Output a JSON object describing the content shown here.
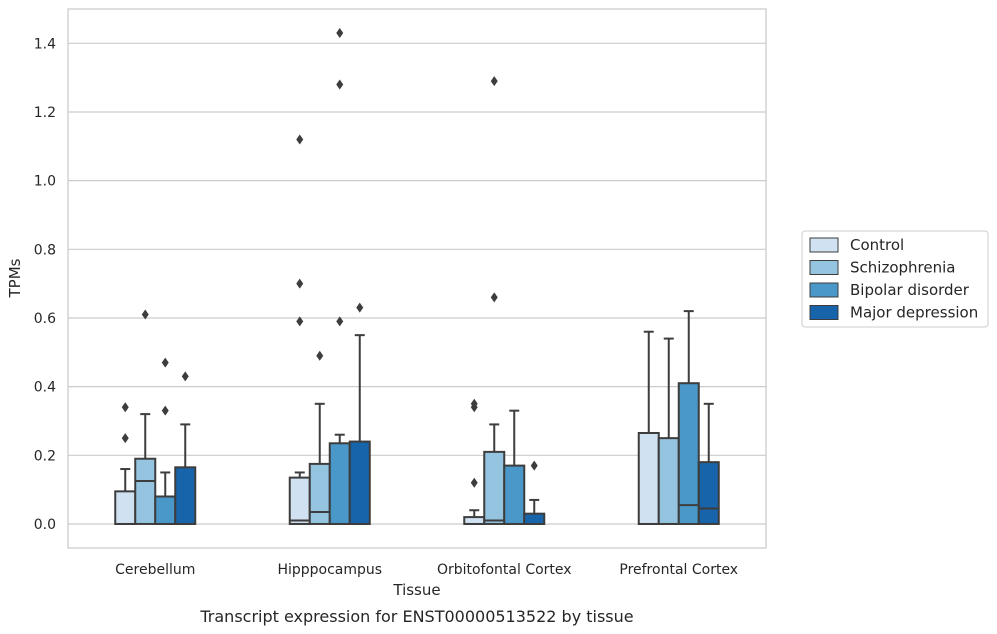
{
  "caption": "Transcript expression for ENST00000513522 by tissue",
  "chart_data": {
    "type": "boxplot",
    "xlabel": "Tissue",
    "ylabel": "TPMs",
    "ylim": [
      -0.07,
      1.5
    ],
    "yticks": [
      "0.0",
      "0.2",
      "0.4",
      "0.6",
      "0.8",
      "1.0",
      "1.2",
      "1.4"
    ],
    "grid": "horizontal",
    "legend_position": "right",
    "categories": [
      "Cerebellum",
      "Hipppocampus",
      "Orbitofontal Cortex",
      "Prefrontal Cortex"
    ],
    "series": [
      {
        "name": "Control",
        "color": "#d0e1f2",
        "boxes": [
          {
            "q1": 0.0,
            "median": 0.0,
            "q3": 0.095,
            "whisker_low": 0.0,
            "whisker_high": 0.16,
            "outliers": [
              0.25,
              0.34
            ]
          },
          {
            "q1": 0.0,
            "median": 0.01,
            "q3": 0.135,
            "whisker_low": 0.0,
            "whisker_high": 0.15,
            "outliers": [
              0.59,
              0.7,
              1.12
            ]
          },
          {
            "q1": 0.0,
            "median": 0.0,
            "q3": 0.02,
            "whisker_low": 0.0,
            "whisker_high": 0.04,
            "outliers": [
              0.12,
              0.34,
              0.35
            ]
          },
          {
            "q1": 0.0,
            "median": 0.0,
            "q3": 0.265,
            "whisker_low": 0.0,
            "whisker_high": 0.56,
            "outliers": []
          }
        ]
      },
      {
        "name": "Schizophrenia",
        "color": "#94c4df",
        "boxes": [
          {
            "q1": 0.0,
            "median": 0.125,
            "q3": 0.19,
            "whisker_low": 0.0,
            "whisker_high": 0.32,
            "outliers": [
              0.61
            ]
          },
          {
            "q1": 0.0,
            "median": 0.035,
            "q3": 0.175,
            "whisker_low": 0.0,
            "whisker_high": 0.35,
            "outliers": [
              0.49
            ]
          },
          {
            "q1": 0.0,
            "median": 0.01,
            "q3": 0.21,
            "whisker_low": 0.0,
            "whisker_high": 0.29,
            "outliers": [
              0.66,
              1.29
            ]
          },
          {
            "q1": 0.0,
            "median": 0.0,
            "q3": 0.25,
            "whisker_low": 0.0,
            "whisker_high": 0.54,
            "outliers": []
          }
        ]
      },
      {
        "name": "Bipolar disorder",
        "color": "#4a98c9",
        "boxes": [
          {
            "q1": 0.0,
            "median": 0.0,
            "q3": 0.08,
            "whisker_low": 0.0,
            "whisker_high": 0.15,
            "outliers": [
              0.33,
              0.47
            ]
          },
          {
            "q1": 0.0,
            "median": 0.0,
            "q3": 0.235,
            "whisker_low": 0.0,
            "whisker_high": 0.26,
            "outliers": [
              0.59,
              1.28,
              1.43
            ]
          },
          {
            "q1": 0.0,
            "median": 0.0,
            "q3": 0.17,
            "whisker_low": 0.0,
            "whisker_high": 0.33,
            "outliers": []
          },
          {
            "q1": 0.0,
            "median": 0.055,
            "q3": 0.41,
            "whisker_low": 0.0,
            "whisker_high": 0.62,
            "outliers": []
          }
        ]
      },
      {
        "name": "Major depression",
        "color": "#1764ab",
        "boxes": [
          {
            "q1": 0.0,
            "median": 0.0,
            "q3": 0.165,
            "whisker_low": 0.0,
            "whisker_high": 0.29,
            "outliers": [
              0.43
            ]
          },
          {
            "q1": 0.0,
            "median": 0.0,
            "q3": 0.24,
            "whisker_low": 0.0,
            "whisker_high": 0.55,
            "outliers": [
              0.63
            ]
          },
          {
            "q1": 0.0,
            "median": 0.0,
            "q3": 0.03,
            "whisker_low": 0.0,
            "whisker_high": 0.07,
            "outliers": [
              0.17
            ]
          },
          {
            "q1": 0.0,
            "median": 0.045,
            "q3": 0.18,
            "whisker_low": 0.0,
            "whisker_high": 0.35,
            "outliers": []
          }
        ]
      }
    ]
  }
}
